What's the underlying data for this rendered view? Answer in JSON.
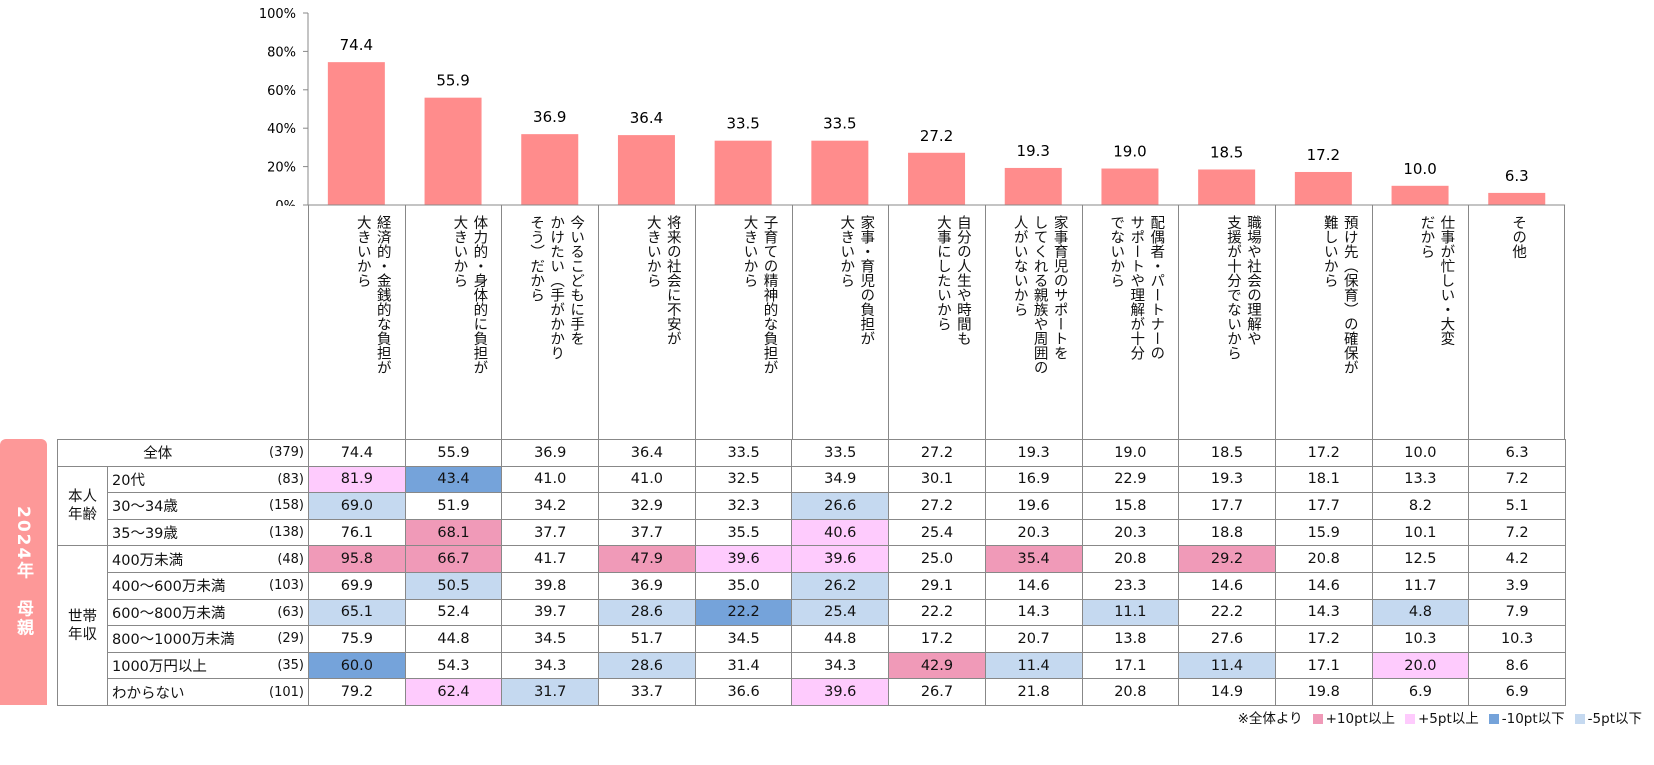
{
  "side_label": "2024年　母親",
  "chart_data": {
    "type": "bar",
    "ylim": [
      0,
      100
    ],
    "yticks": [
      "0%",
      "20%",
      "40%",
      "60%",
      "80%",
      "100%"
    ],
    "ytick_values": [
      0,
      20,
      40,
      60,
      80,
      100
    ],
    "bar_color": "#ff8c8c",
    "categories": [
      "経済的・金銭的な負担が\n大きいから",
      "体力的・身体的に負担が\n大きいから",
      "今いるこどもに手を\nかけたい（手がかかり\nそう）だから",
      "将来の社会に不安が\n大きいから",
      "子育ての精神的な負担が\n大きいから",
      "家事・育児の負担が\n大きいから",
      "自分の人生や時間も\n大事にしたいから",
      "家事育児のサポートを\nしてくれる親族や周囲の\n人がいないから",
      "配偶者・パートナーの\nサポートや理解が十分\nでないから",
      "職場や社会の理解や\n支援が十分でないから",
      "預け先（保育）の確保が\n難しいから",
      "仕事が忙しい・大変\nだから",
      "その他"
    ],
    "values": [
      74.4,
      55.9,
      36.9,
      36.4,
      33.5,
      33.5,
      27.2,
      19.3,
      19.0,
      18.5,
      17.2,
      10.0,
      6.3
    ],
    "labels": [
      "74.4",
      "55.9",
      "36.9",
      "36.4",
      "33.5",
      "33.5",
      "27.2",
      "19.3",
      "19.0",
      "18.5",
      "17.2",
      "10.0",
      "6.3"
    ]
  },
  "table": {
    "total": {
      "label": "全体",
      "n": "(379)",
      "values": [
        "74.4",
        "55.9",
        "36.9",
        "36.4",
        "33.5",
        "33.5",
        "27.2",
        "19.3",
        "19.0",
        "18.5",
        "17.2",
        "10.0",
        "6.3"
      ]
    },
    "groups": [
      {
        "label": "本人年齢",
        "rows": [
          {
            "label": "20代",
            "n": "(83)",
            "values": [
              "81.9",
              "43.4",
              "41.0",
              "41.0",
              "32.5",
              "34.9",
              "30.1",
              "16.9",
              "22.9",
              "19.3",
              "18.1",
              "13.3",
              "7.2"
            ],
            "hl": [
              "b",
              "c",
              "",
              "",
              "",
              "",
              "",
              "",
              "",
              "",
              "",
              "",
              ""
            ]
          },
          {
            "label": "30～34歳",
            "n": "(158)",
            "values": [
              "69.0",
              "51.9",
              "34.2",
              "32.9",
              "32.3",
              "26.6",
              "27.2",
              "19.6",
              "15.8",
              "17.7",
              "17.7",
              "8.2",
              "5.1"
            ],
            "hl": [
              "d",
              "",
              "",
              "",
              "",
              "d",
              "",
              "",
              "",
              "",
              "",
              "",
              ""
            ]
          },
          {
            "label": "35～39歳",
            "n": "(138)",
            "values": [
              "76.1",
              "68.1",
              "37.7",
              "37.7",
              "35.5",
              "40.6",
              "25.4",
              "20.3",
              "20.3",
              "18.8",
              "15.9",
              "10.1",
              "7.2"
            ],
            "hl": [
              "",
              "a",
              "",
              "",
              "",
              "b",
              "",
              "",
              "",
              "",
              "",
              "",
              ""
            ]
          }
        ]
      },
      {
        "label": "世帯年収",
        "rows": [
          {
            "label": "400万未満",
            "n": "(48)",
            "values": [
              "95.8",
              "66.7",
              "41.7",
              "47.9",
              "39.6",
              "39.6",
              "25.0",
              "35.4",
              "20.8",
              "29.2",
              "20.8",
              "12.5",
              "4.2"
            ],
            "hl": [
              "a",
              "a",
              "",
              "a",
              "b",
              "b",
              "",
              "a",
              "",
              "a",
              "",
              "",
              ""
            ]
          },
          {
            "label": "400～600万未満",
            "n": "(103)",
            "values": [
              "69.9",
              "50.5",
              "39.8",
              "36.9",
              "35.0",
              "26.2",
              "29.1",
              "14.6",
              "23.3",
              "14.6",
              "14.6",
              "11.7",
              "3.9"
            ],
            "hl": [
              "",
              "d",
              "",
              "",
              "",
              "d",
              "",
              "",
              "",
              "",
              "",
              "",
              ""
            ]
          },
          {
            "label": "600～800万未満",
            "n": "(63)",
            "values": [
              "65.1",
              "52.4",
              "39.7",
              "28.6",
              "22.2",
              "25.4",
              "22.2",
              "14.3",
              "11.1",
              "22.2",
              "14.3",
              "4.8",
              "7.9"
            ],
            "hl": [
              "d",
              "",
              "",
              "d",
              "c",
              "d",
              "",
              "",
              "d",
              "",
              "",
              "d",
              ""
            ]
          },
          {
            "label": "800～1000万未満",
            "n": "(29)",
            "values": [
              "75.9",
              "44.8",
              "34.5",
              "51.7",
              "34.5",
              "44.8",
              "17.2",
              "20.7",
              "13.8",
              "27.6",
              "17.2",
              "10.3",
              "10.3"
            ],
            "hl": [
              "",
              "",
              "",
              "",
              "",
              "",
              "",
              "",
              "",
              "",
              "",
              "",
              ""
            ]
          },
          {
            "label": "1000万円以上",
            "n": "(35)",
            "values": [
              "60.0",
              "54.3",
              "34.3",
              "28.6",
              "31.4",
              "34.3",
              "42.9",
              "11.4",
              "17.1",
              "11.4",
              "17.1",
              "20.0",
              "8.6"
            ],
            "hl": [
              "c",
              "",
              "",
              "d",
              "",
              "",
              "a",
              "d",
              "",
              "d",
              "",
              "b",
              ""
            ]
          },
          {
            "label": "わからない",
            "n": "(101)",
            "values": [
              "79.2",
              "62.4",
              "31.7",
              "33.7",
              "36.6",
              "39.6",
              "26.7",
              "21.8",
              "20.8",
              "14.9",
              "19.8",
              "6.9",
              "6.9"
            ],
            "hl": [
              "",
              "b",
              "d",
              "",
              "",
              "b",
              "",
              "",
              "",
              "",
              "",
              "",
              ""
            ]
          }
        ]
      }
    ]
  },
  "legend": {
    "note": "※全体より",
    "items": [
      {
        "label": "+10pt以上",
        "color": "#f09ab8"
      },
      {
        "label": "+5pt以上",
        "color": "#fecbfd"
      },
      {
        "label": "-10pt以下",
        "color": "#75a3da"
      },
      {
        "label": "-5pt以下",
        "color": "#c5d9f0"
      }
    ]
  }
}
